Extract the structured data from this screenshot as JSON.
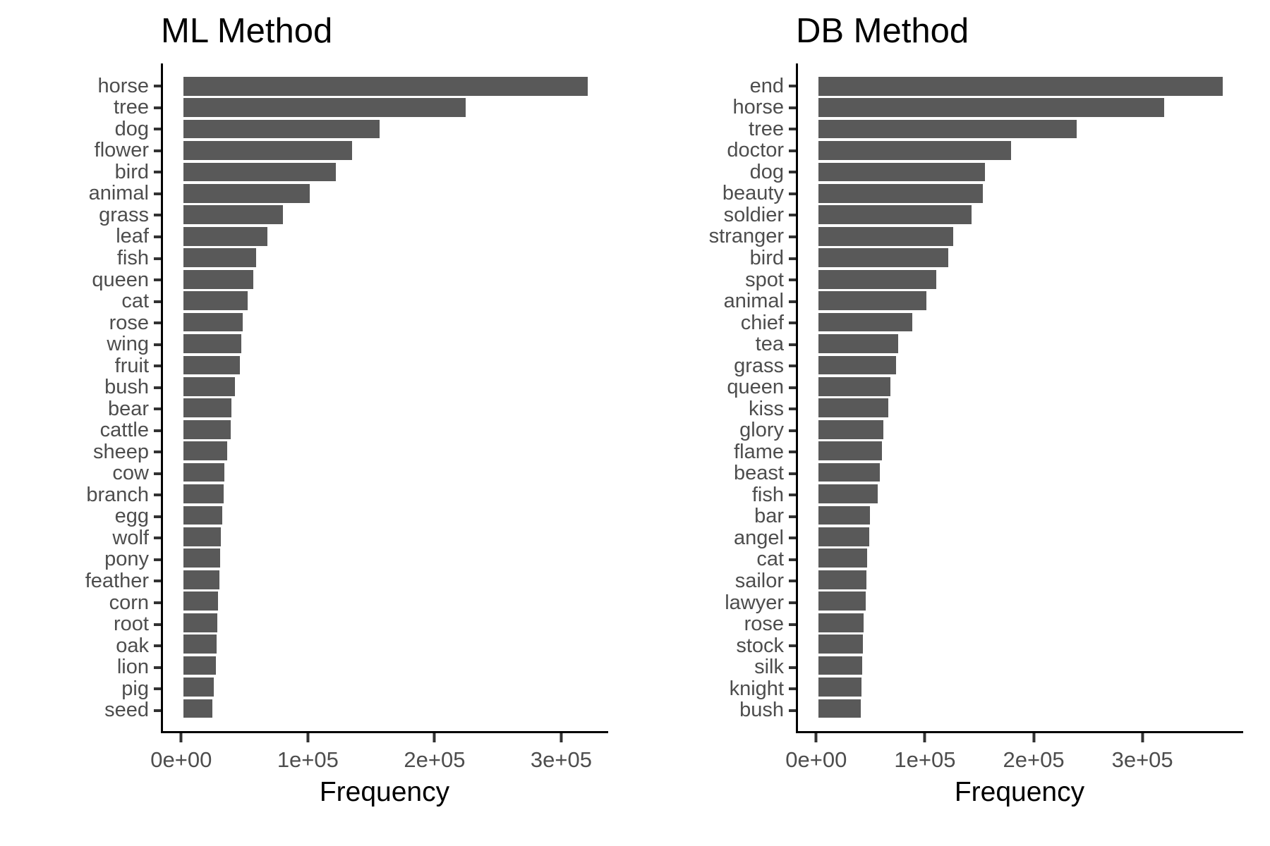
{
  "styles": {
    "bar_color": "#595959",
    "axis_text_color": "#4d4d4d",
    "axis_line_color": "#000000",
    "title_color": "#000000",
    "background": "#ffffff"
  },
  "chart_data": [
    {
      "type": "bar",
      "orientation": "horizontal",
      "title": "ML Method",
      "xlabel": "Frequency",
      "bar_color": "#595959",
      "grid": false,
      "legend": false,
      "categories": [
        "horse",
        "tree",
        "dog",
        "flower",
        "bird",
        "animal",
        "grass",
        "leaf",
        "fish",
        "queen",
        "cat",
        "rose",
        "wing",
        "fruit",
        "bush",
        "bear",
        "cattle",
        "sheep",
        "cow",
        "branch",
        "egg",
        "wolf",
        "pony",
        "feather",
        "corn",
        "root",
        "oak",
        "lion",
        "pig",
        "seed"
      ],
      "values": [
        321000,
        224000,
        156000,
        134000,
        121000,
        100500,
        79000,
        67000,
        58000,
        55500,
        51000,
        47000,
        46000,
        45000,
        41000,
        38500,
        37500,
        35000,
        32500,
        32000,
        31000,
        30000,
        29500,
        28500,
        27500,
        27000,
        26500,
        26000,
        24500,
        23000
      ],
      "xtick_values": [
        0,
        100000,
        200000,
        300000
      ],
      "xtick_labels": [
        "0e+00",
        "1e+05",
        "2e+05",
        "3e+05"
      ],
      "xlim": [
        0,
        337000
      ],
      "expand_frac": 0.05
    },
    {
      "type": "bar",
      "orientation": "horizontal",
      "title": "DB Method",
      "xlabel": "Frequency",
      "bar_color": "#595959",
      "grid": false,
      "legend": false,
      "categories": [
        "end",
        "horse",
        "tree",
        "doctor",
        "dog",
        "beauty",
        "soldier",
        "stranger",
        "bird",
        "spot",
        "animal",
        "chief",
        "tea",
        "grass",
        "queen",
        "kiss",
        "glory",
        "flame",
        "beast",
        "fish",
        "bar",
        "angel",
        "cat",
        "sailor",
        "lawyer",
        "rose",
        "stock",
        "silk",
        "knight",
        "bush"
      ],
      "values": [
        374000,
        320000,
        239000,
        178000,
        154000,
        152000,
        142000,
        125000,
        120000,
        109000,
        100000,
        87000,
        74000,
        72000,
        67000,
        65000,
        60000,
        59000,
        57000,
        55000,
        47500,
        47000,
        45000,
        44500,
        44000,
        42000,
        41000,
        40500,
        40000,
        39500
      ],
      "xtick_values": [
        0,
        100000,
        200000,
        300000
      ],
      "xtick_labels": [
        "0e+00",
        "1e+05",
        "2e+05",
        "3e+05"
      ],
      "xlim": [
        0,
        393000
      ],
      "expand_frac": 0.05
    }
  ]
}
